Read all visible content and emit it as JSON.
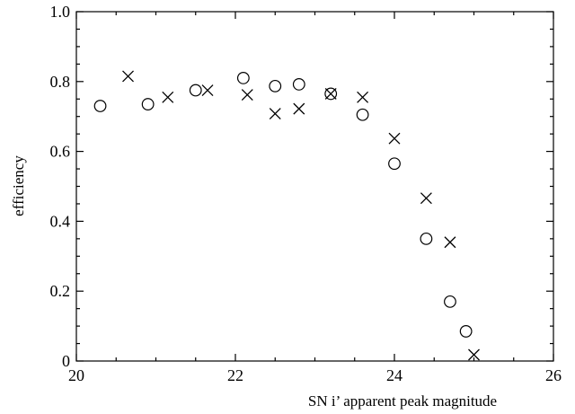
{
  "chart_data": {
    "type": "scatter",
    "xlabel": "SN i’ apparent peak magnitude",
    "ylabel": "efficiency",
    "xlim": [
      20,
      26
    ],
    "ylim": [
      0,
      1.0
    ],
    "x_ticks": [
      20,
      22,
      24,
      26
    ],
    "y_ticks": [
      0,
      0.2,
      0.4,
      0.6,
      0.8,
      1.0
    ],
    "x_tick_labels": [
      "20",
      "22",
      "24",
      "26"
    ],
    "y_tick_labels": [
      "0",
      "0.2",
      "0.4",
      "0.6",
      "0.8",
      "1.0"
    ],
    "x_minor_step": 0.5,
    "y_minor_step": 0.05,
    "grid": false,
    "series": [
      {
        "marker": "circle",
        "x": [
          20.3,
          20.9,
          21.5,
          22.1,
          22.5,
          22.8,
          23.2,
          23.6,
          24.0,
          24.4,
          24.7,
          24.9
        ],
        "y": [
          0.73,
          0.735,
          0.775,
          0.81,
          0.787,
          0.792,
          0.765,
          0.705,
          0.565,
          0.35,
          0.17,
          0.085
        ]
      },
      {
        "marker": "x",
        "x": [
          20.65,
          21.15,
          21.65,
          22.15,
          22.5,
          22.8,
          23.2,
          23.6,
          24.0,
          24.4,
          24.7,
          25.0
        ],
        "y": [
          0.815,
          0.755,
          0.775,
          0.762,
          0.708,
          0.722,
          0.765,
          0.755,
          0.637,
          0.466,
          0.34,
          0.018
        ]
      }
    ]
  }
}
